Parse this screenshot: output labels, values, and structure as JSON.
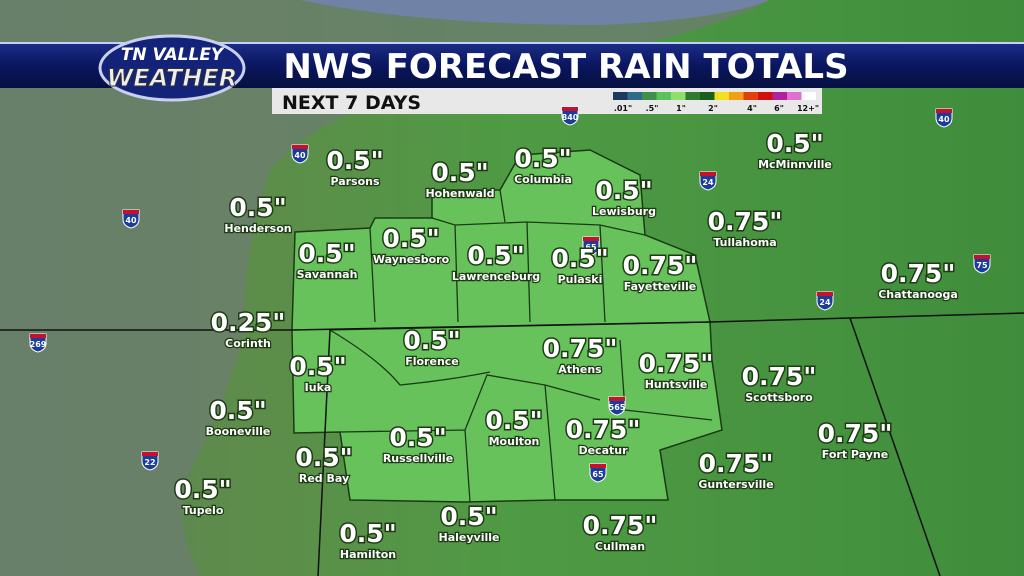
{
  "logo": {
    "line1": "TN VALLEY",
    "line2": "WEATHER"
  },
  "header": {
    "title": "NWS FORECAST RAIN TOTALS",
    "subtitle": "NEXT 7 DAYS"
  },
  "legend": {
    "labels": [
      ".01\"",
      ".5\"",
      "1\"",
      "2\"",
      "4\"",
      "6\"",
      "12+\""
    ]
  },
  "cities": [
    {
      "amount": "0.5\"",
      "name": "Parsons"
    },
    {
      "amount": "0.5\"",
      "name": "Hohenwald"
    },
    {
      "amount": "0.5\"",
      "name": "Columbia"
    },
    {
      "amount": "0.5\"",
      "name": "Lewisburg"
    },
    {
      "amount": "0.5\"",
      "name": "McMinnville"
    },
    {
      "amount": "0.5\"",
      "name": "Henderson"
    },
    {
      "amount": "0.75\"",
      "name": "Tullahoma"
    },
    {
      "amount": "0.5\"",
      "name": "Waynesboro"
    },
    {
      "amount": "0.5\"",
      "name": "Savannah"
    },
    {
      "amount": "0.5\"",
      "name": "Lawrenceburg"
    },
    {
      "amount": "0.5\"",
      "name": "Pulaski"
    },
    {
      "amount": "0.75\"",
      "name": "Fayetteville"
    },
    {
      "amount": "0.75\"",
      "name": "Chattanooga"
    },
    {
      "amount": "0.25\"",
      "name": "Corinth"
    },
    {
      "amount": "0.5\"",
      "name": "Florence"
    },
    {
      "amount": "0.75\"",
      "name": "Athens"
    },
    {
      "amount": "0.75\"",
      "name": "Huntsville"
    },
    {
      "amount": "0.5\"",
      "name": "Iuka"
    },
    {
      "amount": "0.75\"",
      "name": "Scottsboro"
    },
    {
      "amount": "0.5\"",
      "name": "Booneville"
    },
    {
      "amount": "0.5\"",
      "name": "Moulton"
    },
    {
      "amount": "0.75\"",
      "name": "Decatur"
    },
    {
      "amount": "0.5\"",
      "name": "Russellville"
    },
    {
      "amount": "0.75\"",
      "name": "Fort Payne"
    },
    {
      "amount": "0.5\"",
      "name": "Red Bay"
    },
    {
      "amount": "0.75\"",
      "name": "Guntersville"
    },
    {
      "amount": "0.5\"",
      "name": "Tupelo"
    },
    {
      "amount": "0.5\"",
      "name": "Haleyville"
    },
    {
      "amount": "0.75\"",
      "name": "Cullman"
    },
    {
      "amount": "0.5\"",
      "name": "Hamilton"
    }
  ],
  "interstates": [
    "40",
    "840",
    "24",
    "40",
    "65",
    "24",
    "75",
    "40",
    "269",
    "22",
    "565",
    "65"
  ]
}
